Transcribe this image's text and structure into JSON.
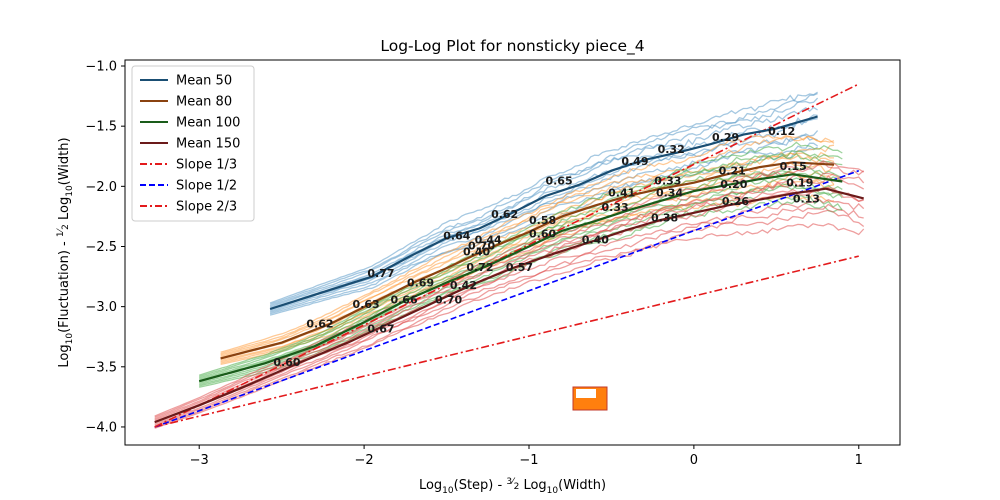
{
  "chart_data": {
    "type": "line",
    "title": "Log-Log Plot for nonsticky piece_4",
    "xlabel_parts": [
      "Log",
      "10",
      "(Step) - ",
      "3",
      "2",
      " Log",
      "10",
      "(Width)"
    ],
    "ylabel_parts": [
      "Log",
      "10",
      "(Fluctuation) - ",
      "1",
      "2",
      " Log",
      "10",
      "(Width)"
    ],
    "xlim": [
      -3.45,
      1.25
    ],
    "ylim": [
      -4.15,
      -0.95
    ],
    "xticks": [
      -3,
      -2,
      -1,
      0,
      1
    ],
    "xtick_labels": [
      "−3",
      "−2",
      "−1",
      "0",
      "1"
    ],
    "yticks": [
      -4.0,
      -3.5,
      -3.0,
      -2.5,
      -2.0,
      -1.5,
      -1.0
    ],
    "ytick_labels": [
      "−4.0",
      "−3.5",
      "−3.0",
      "−2.5",
      "−2.0",
      "−1.5",
      "−1.0"
    ],
    "grid": false,
    "legend_position": "upper-left",
    "legend": [
      {
        "label": "Mean 50",
        "color": "#1a4e73",
        "style": "solid"
      },
      {
        "label": "Mean 80",
        "color": "#8a4210",
        "style": "solid"
      },
      {
        "label": "Mean 100",
        "color": "#1a5c1a",
        "style": "solid"
      },
      {
        "label": "Mean 150",
        "color": "#6b1a1a",
        "style": "solid"
      },
      {
        "label": "Slope 1/3",
        "color": "#e31a1c",
        "style": "dashdot"
      },
      {
        "label": "Slope 1/2",
        "color": "#0000ff",
        "style": "dashed"
      },
      {
        "label": "Slope 2/3",
        "color": "#e31a1c",
        "style": "dashdot"
      }
    ],
    "series": [
      {
        "name": "Mean 50",
        "color": "#1a4e73",
        "bundle_color": "#5b9bc8",
        "x": [
          -2.57,
          -2.25,
          -1.95,
          -1.72,
          -1.5,
          -1.3,
          -1.1,
          -0.9,
          -0.7,
          -0.5,
          -0.3,
          -0.1,
          0.1,
          0.3,
          0.5,
          0.75
        ],
        "y": [
          -3.02,
          -2.88,
          -2.75,
          -2.58,
          -2.43,
          -2.35,
          -2.22,
          -2.08,
          -1.99,
          -1.87,
          -1.78,
          -1.72,
          -1.65,
          -1.57,
          -1.52,
          -1.42
        ]
      },
      {
        "name": "Mean 80",
        "color": "#8a4210",
        "bundle_color": "#ff9f40",
        "x": [
          -2.87,
          -2.5,
          -2.2,
          -1.95,
          -1.7,
          -1.5,
          -1.25,
          -1.0,
          -0.8,
          -0.6,
          -0.4,
          -0.2,
          0.0,
          0.2,
          0.4,
          0.6,
          0.85
        ],
        "y": [
          -3.43,
          -3.3,
          -3.14,
          -2.97,
          -2.8,
          -2.68,
          -2.52,
          -2.38,
          -2.25,
          -2.16,
          -2.08,
          -2.02,
          -1.97,
          -1.9,
          -1.84,
          -1.8,
          -1.82
        ]
      },
      {
        "name": "Mean 100",
        "color": "#1a5c1a",
        "bundle_color": "#4caf4c",
        "x": [
          -3.0,
          -2.6,
          -2.3,
          -2.0,
          -1.75,
          -1.5,
          -1.25,
          -1.0,
          -0.8,
          -0.6,
          -0.4,
          -0.2,
          0.0,
          0.2,
          0.4,
          0.6,
          0.9
        ],
        "y": [
          -3.62,
          -3.47,
          -3.33,
          -3.13,
          -2.95,
          -2.8,
          -2.66,
          -2.5,
          -2.37,
          -2.29,
          -2.2,
          -2.12,
          -2.04,
          -1.99,
          -1.94,
          -1.9,
          -1.96
        ]
      },
      {
        "name": "Mean 150",
        "color": "#6b1a1a",
        "bundle_color": "#e05050",
        "x": [
          -3.27,
          -3.0,
          -2.7,
          -2.4,
          -2.1,
          -1.85,
          -1.6,
          -1.35,
          -1.1,
          -0.85,
          -0.6,
          -0.4,
          -0.2,
          0.0,
          0.2,
          0.4,
          0.6,
          0.8,
          1.03
        ],
        "y": [
          -3.96,
          -3.82,
          -3.65,
          -3.47,
          -3.3,
          -3.14,
          -2.98,
          -2.82,
          -2.68,
          -2.56,
          -2.45,
          -2.36,
          -2.28,
          -2.22,
          -2.16,
          -2.11,
          -2.06,
          -2.02,
          -2.1
        ]
      }
    ],
    "reference_lines": [
      {
        "name": "Slope 1/3",
        "x": [
          -3.27,
          1.0
        ],
        "y": [
          -4.0,
          -2.58
        ],
        "color": "#e31a1c",
        "style": "dashdot"
      },
      {
        "name": "Slope 1/2",
        "x": [
          -3.27,
          1.0
        ],
        "y": [
          -4.0,
          -1.87
        ],
        "color": "#0000ff",
        "style": "dashed"
      },
      {
        "name": "Slope 2/3",
        "x": [
          -3.27,
          1.0
        ],
        "y": [
          -4.0,
          -1.15
        ],
        "color": "#e31a1c",
        "style": "dashdot"
      }
    ],
    "slope_annotations": [
      {
        "text": "0.77",
        "x": -1.98,
        "y": -2.72
      },
      {
        "text": "0.63",
        "x": -2.07,
        "y": -2.98
      },
      {
        "text": "0.62",
        "x": -2.35,
        "y": -3.14
      },
      {
        "text": "0.69",
        "x": -1.74,
        "y": -2.8
      },
      {
        "text": "0.66",
        "x": -1.84,
        "y": -2.94
      },
      {
        "text": "0.67",
        "x": -1.98,
        "y": -3.18
      },
      {
        "text": "0.60",
        "x": -2.55,
        "y": -3.46
      },
      {
        "text": "0.64",
        "x": -1.52,
        "y": -2.41
      },
      {
        "text": "0.44",
        "x": -1.33,
        "y": -2.44
      },
      {
        "text": "0.70",
        "x": -1.37,
        "y": -2.49
      },
      {
        "text": "0.40",
        "x": -1.4,
        "y": -2.54
      },
      {
        "text": "0.72",
        "x": -1.38,
        "y": -2.67
      },
      {
        "text": "0.42",
        "x": -1.48,
        "y": -2.82
      },
      {
        "text": "0.70",
        "x": -1.57,
        "y": -2.94
      },
      {
        "text": "0.57",
        "x": -1.14,
        "y": -2.67
      },
      {
        "text": "0.62",
        "x": -1.23,
        "y": -2.23
      },
      {
        "text": "0.60",
        "x": -1.0,
        "y": -2.39
      },
      {
        "text": "0.58",
        "x": -1.0,
        "y": -2.28
      },
      {
        "text": "0.65",
        "x": -0.9,
        "y": -1.95
      },
      {
        "text": "0.40",
        "x": -0.68,
        "y": -2.44
      },
      {
        "text": "0.41",
        "x": -0.52,
        "y": -2.05
      },
      {
        "text": "0.33",
        "x": -0.56,
        "y": -2.17
      },
      {
        "text": "0.49",
        "x": -0.44,
        "y": -1.79
      },
      {
        "text": "0.38",
        "x": -0.26,
        "y": -2.26
      },
      {
        "text": "0.34",
        "x": -0.23,
        "y": -2.05
      },
      {
        "text": "0.33",
        "x": -0.24,
        "y": -1.95
      },
      {
        "text": "0.32",
        "x": -0.22,
        "y": -1.69
      },
      {
        "text": "0.26",
        "x": 0.17,
        "y": -2.12
      },
      {
        "text": "0.20",
        "x": 0.16,
        "y": -1.98
      },
      {
        "text": "0.21",
        "x": 0.15,
        "y": -1.87
      },
      {
        "text": "0.29",
        "x": 0.11,
        "y": -1.59
      },
      {
        "text": "0.12",
        "x": 0.45,
        "y": -1.54
      },
      {
        "text": "0.15",
        "x": 0.52,
        "y": -1.83
      },
      {
        "text": "0.19",
        "x": 0.56,
        "y": -1.97
      },
      {
        "text": "0.13",
        "x": 0.6,
        "y": -2.1
      }
    ]
  }
}
